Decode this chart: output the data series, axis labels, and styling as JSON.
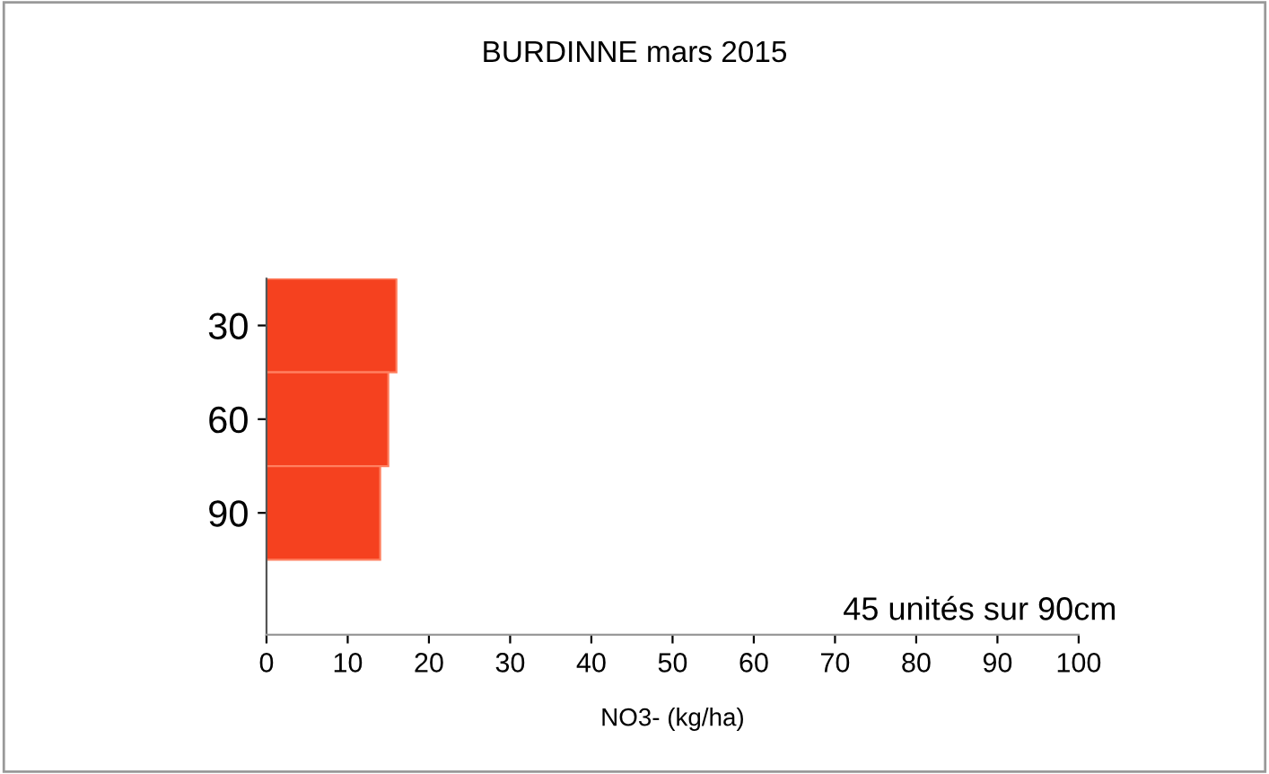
{
  "chart_data": {
    "type": "bar",
    "orientation": "horizontal",
    "title": "BURDINNE mars 2015",
    "xlabel": "NO3- (kg/ha)",
    "categories": [
      "30",
      "60",
      "90"
    ],
    "values": [
      16,
      15,
      14
    ],
    "color": "#f5411f",
    "xlim": [
      0,
      100
    ],
    "xticks": [
      0,
      10,
      20,
      30,
      40,
      50,
      60,
      70,
      80,
      90,
      100
    ],
    "grid": false,
    "annotations": [
      "45 unités sur 90cm"
    ]
  }
}
